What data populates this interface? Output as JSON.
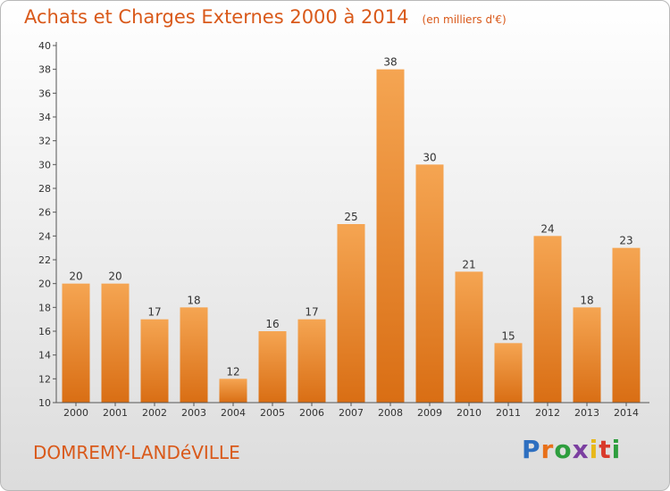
{
  "header": {
    "title": "Achats et Charges Externes 2000 à 2014",
    "subtitle": "(en milliers d'€)"
  },
  "footer": {
    "commune": "DOMREMY-LANDéVILLE",
    "logo": "Proxiti",
    "logo_colors": [
      "#2e6fc0",
      "#e8701a",
      "#2e9e3e",
      "#7b3fa0",
      "#e8b81a",
      "#d93a2b",
      "#2e9e3e"
    ]
  },
  "colors": {
    "bar_top": "#f5a552",
    "bar_bottom": "#d96e14",
    "text_accent": "#d9591a",
    "axis": "#555555"
  },
  "chart_data": {
    "type": "bar",
    "title": "Achats et Charges Externes 2000 à 2014",
    "subtitle": "(en milliers d'€)",
    "categories": [
      "2000",
      "2001",
      "2002",
      "2003",
      "2004",
      "2005",
      "2006",
      "2007",
      "2008",
      "2009",
      "2010",
      "2011",
      "2012",
      "2013",
      "2014"
    ],
    "values": [
      20,
      20,
      17,
      18,
      12,
      16,
      17,
      25,
      38,
      30,
      21,
      15,
      24,
      18,
      23
    ],
    "ylim": [
      10,
      40
    ],
    "yticks": [
      10,
      12,
      14,
      16,
      18,
      20,
      22,
      24,
      26,
      28,
      30,
      32,
      34,
      36,
      38,
      40
    ],
    "grid": false,
    "xlabel": "",
    "ylabel": ""
  }
}
